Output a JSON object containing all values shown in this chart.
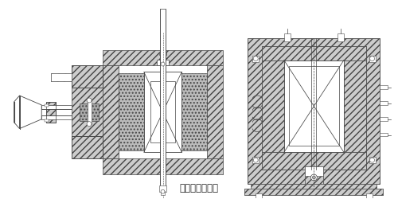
{
  "title": "（三）防爆装置",
  "bg_color": "#ffffff",
  "line_color": "#444444",
  "figsize": [
    5.0,
    2.5
  ],
  "dpi": 100
}
